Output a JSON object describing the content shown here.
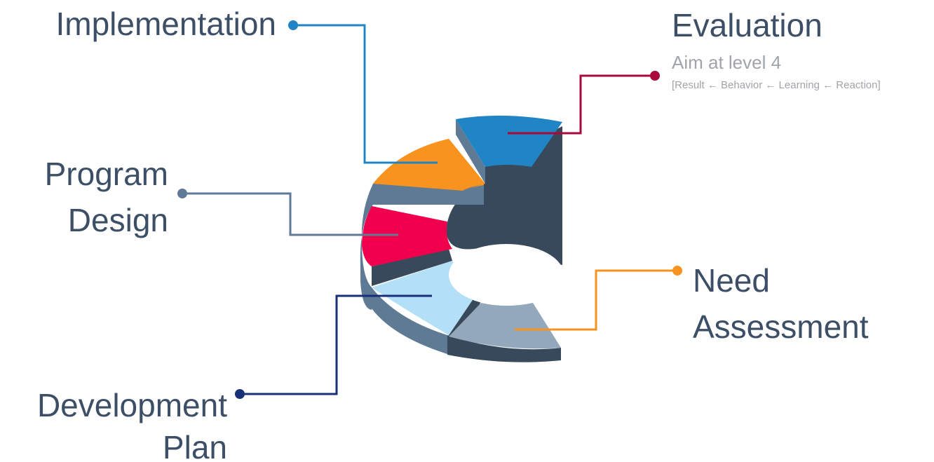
{
  "labels": {
    "implementation": "Implementation",
    "evaluation": "Evaluation",
    "evaluation_sub": "Aim at level 4",
    "evaluation_detail": "[Result ← Behavior ← Learning ← Reaction]",
    "program_line1": "Program",
    "program_line2": "Design",
    "need_line1": "Need",
    "need_line2": "Assessment",
    "development_line1": "Development",
    "development_line2": "Plan"
  },
  "colors": {
    "evaluation": "#2185c5",
    "implementation": "#f7931e",
    "program_design": "#f0004c",
    "development_plan": "#b3e0f7",
    "need_assessment": "#94a8bb",
    "side_dark": "#37495a",
    "side_mid": "#5e7a94",
    "text": "#3d4f66",
    "sub_text": "#a0a4a8",
    "line_implementation": "#2185c5",
    "line_evaluation": "#a8083c",
    "line_program": "#5e7a94",
    "line_development": "#1a2f7a",
    "line_need": "#f7931e"
  }
}
